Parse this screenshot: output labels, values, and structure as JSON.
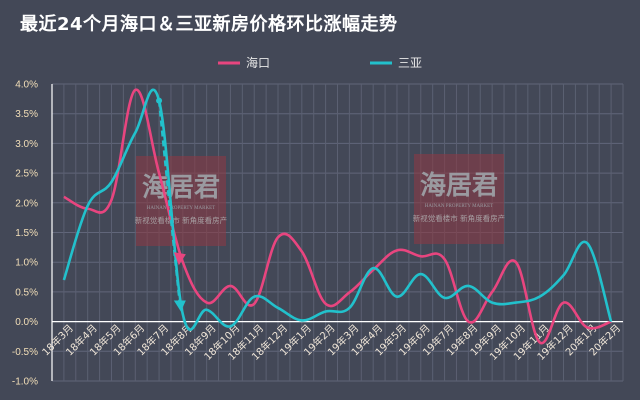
{
  "chart_data": {
    "type": "line",
    "title": "最近24个月海口＆三亚新房价格环比涨幅走势",
    "xlabel": "",
    "ylabel": "",
    "categories": [
      "18年3月",
      "18年4月",
      "18年5月",
      "18年6月",
      "18年7月",
      "18年8月",
      "18年9月",
      "18年10月",
      "18年11月",
      "18年12月",
      "19年1月",
      "19年2月",
      "19年3月",
      "19年4月",
      "19年5月",
      "19年6月",
      "19年7月",
      "19年8月",
      "19年9月",
      "19年10月",
      "19年11月",
      "19年12月",
      "20年1月",
      "20年2月"
    ],
    "ylim": [
      -1.0,
      4.0
    ],
    "yticks": [
      "4.0%",
      "3.5%",
      "3.0%",
      "2.5%",
      "2.0%",
      "1.5%",
      "1.0%",
      "0.5%",
      "0.0%",
      "-0.5%",
      "-1.0%"
    ],
    "unit": "%",
    "grid": true,
    "legend_placement": "top-center",
    "series": [
      {
        "name": "海口",
        "color": "#e8457f",
        "values": [
          2.1,
          1.9,
          2.05,
          3.9,
          2.5,
          1.0,
          0.32,
          0.6,
          0.3,
          1.42,
          1.18,
          0.3,
          0.49,
          0.87,
          1.2,
          1.1,
          1.05,
          0.0,
          0.5,
          1.0,
          -0.35,
          0.32,
          -0.1,
          0.0
        ]
      },
      {
        "name": "三亚",
        "color": "#22c1cc",
        "values": [
          0.7,
          1.95,
          2.35,
          3.18,
          3.72,
          0.12,
          0.2,
          -0.08,
          0.42,
          0.23,
          0.02,
          0.17,
          0.23,
          0.9,
          0.42,
          0.8,
          0.4,
          0.6,
          0.32,
          0.32,
          0.42,
          0.78,
          1.32,
          0.0
        ]
      }
    ],
    "annotations": [
      {
        "type": "dashed-arrow",
        "series": "三亚",
        "from": "18年7月",
        "to": "18年8月",
        "color": "#22c1cc"
      },
      {
        "type": "arrowhead",
        "series": "海口",
        "at": "18年8月",
        "color": "#e8457f"
      }
    ]
  },
  "watermark": {
    "logo": "海居君",
    "subtitle": "HAINAN PROPERTY MARKET",
    "slogan": "新视觉看楼市 新角度看房产"
  }
}
